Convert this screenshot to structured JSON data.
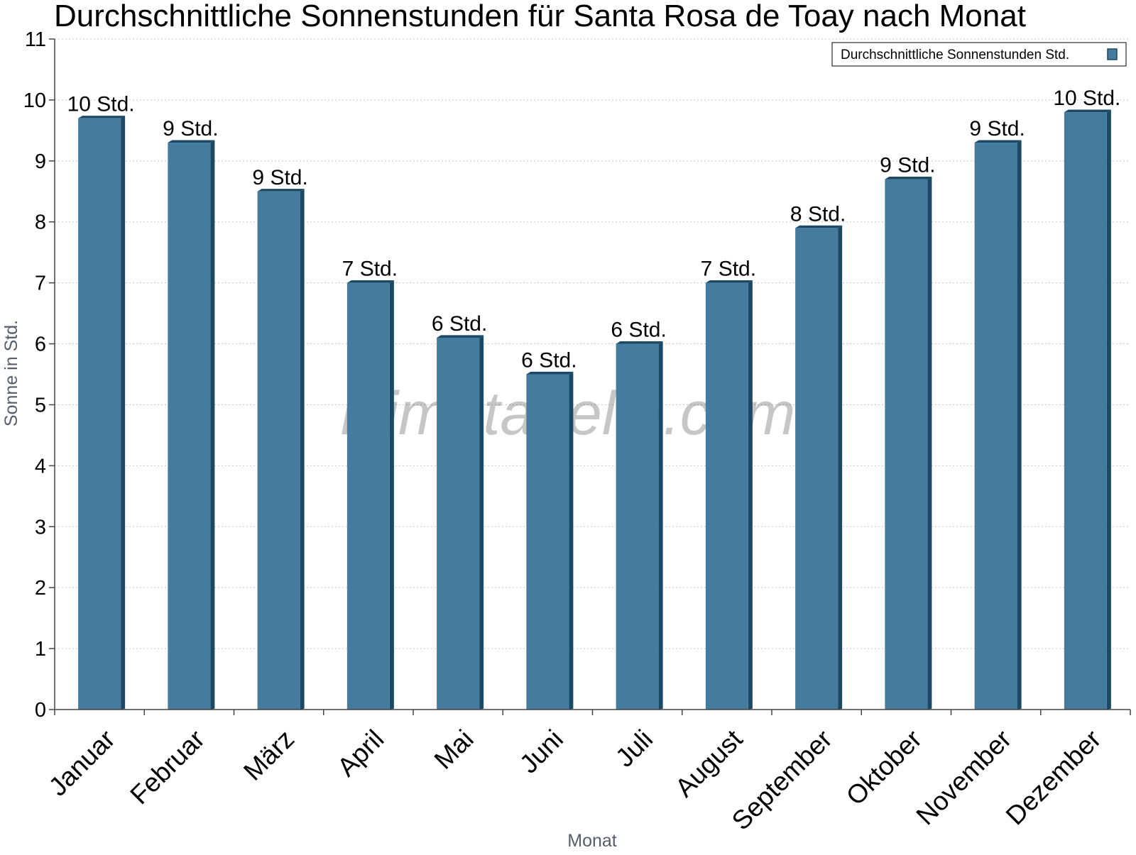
{
  "chart_data": {
    "type": "bar",
    "title": "Durchschnittliche Sonnenstunden für Santa Rosa de Toay nach Monat",
    "xlabel": "Monat",
    "ylabel": "Sonne in Std.",
    "ylim": [
      0,
      11
    ],
    "yticks": [
      "0",
      "1",
      "2",
      "3",
      "4",
      "5",
      "6",
      "7",
      "8",
      "9",
      "10",
      "11"
    ],
    "grid": true,
    "legend_position": "top-right",
    "categories": [
      "Januar",
      "Februar",
      "März",
      "April",
      "Mai",
      "Juni",
      "Juli",
      "August",
      "September",
      "Oktober",
      "November",
      "Dezember"
    ],
    "series": [
      {
        "name": "Durchschnittliche Sonnenstunden Std.",
        "values": [
          9.7,
          9.3,
          8.5,
          7.0,
          6.1,
          5.5,
          6.0,
          7.0,
          7.9,
          8.7,
          9.3,
          9.8
        ],
        "labels": [
          "10 Std.",
          "9 Std.",
          "9 Std.",
          "7 Std.",
          "6 Std.",
          "6 Std.",
          "6 Std.",
          "7 Std.",
          "8 Std.",
          "9 Std.",
          "9 Std.",
          "10 Std."
        ],
        "color": "#457b9d",
        "edge_color": "#1b4965"
      }
    ]
  },
  "watermark": "klimatabelle.com"
}
